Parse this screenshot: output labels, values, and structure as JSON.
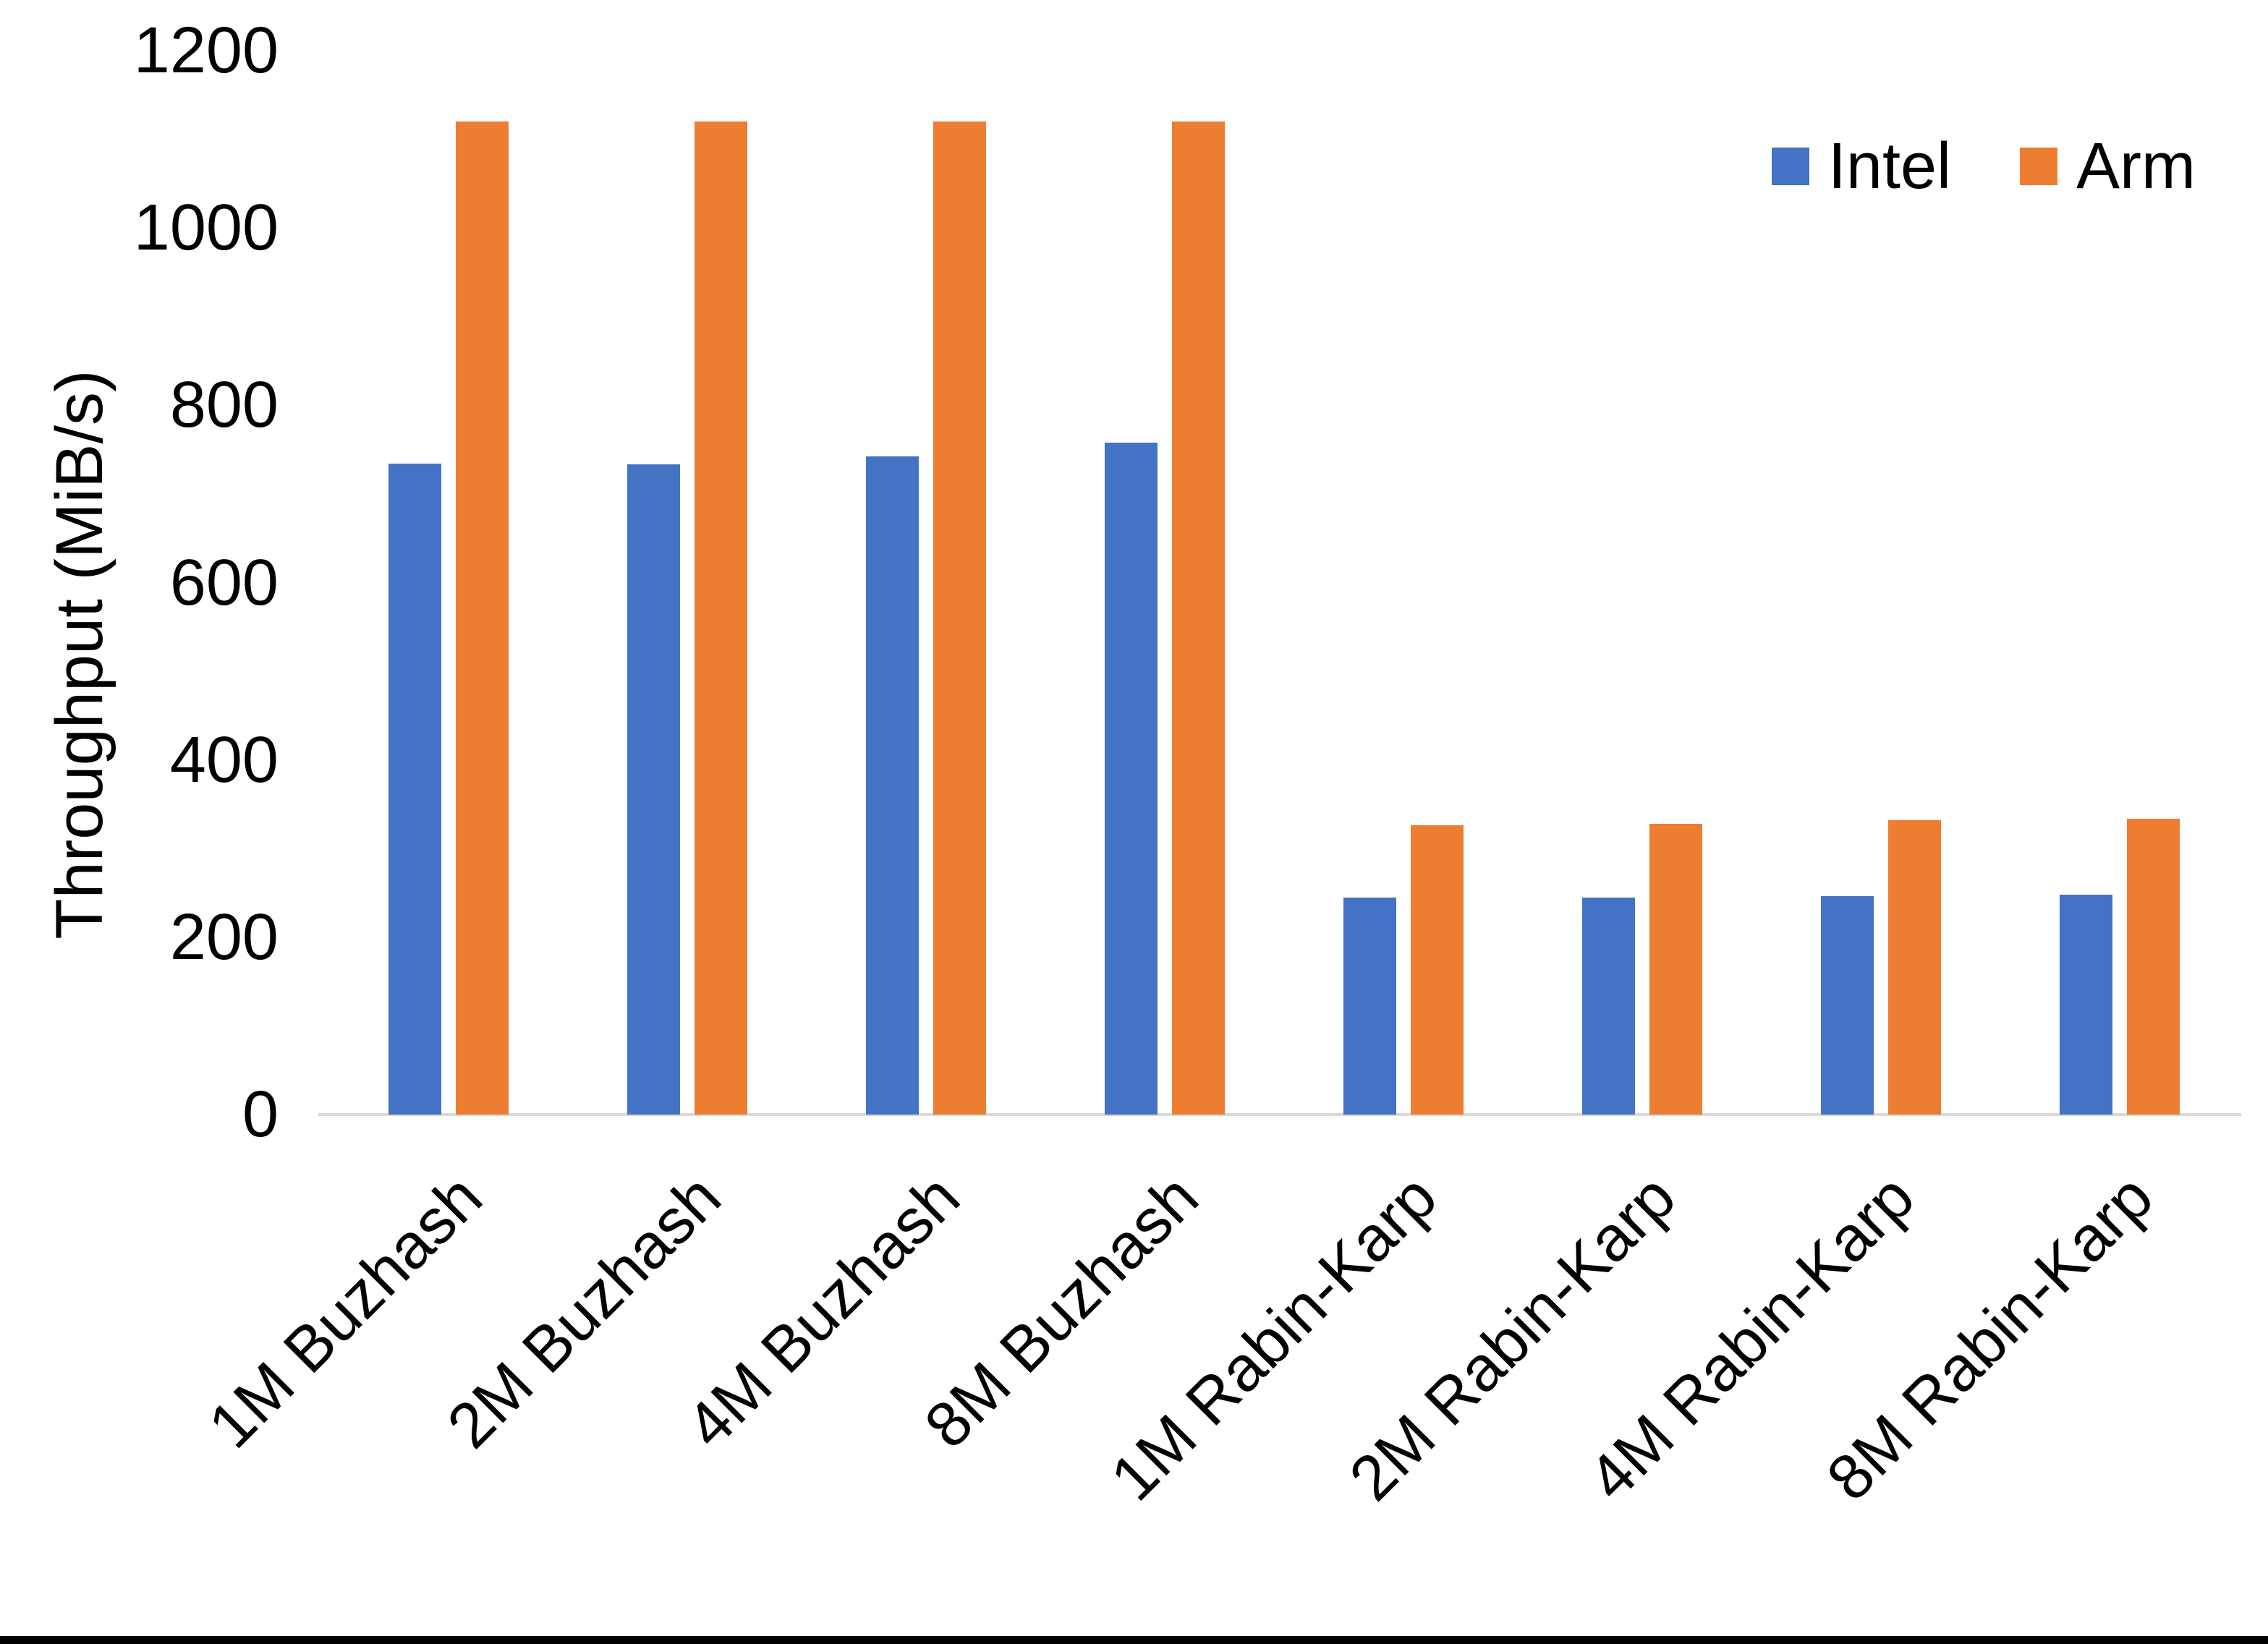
{
  "chart_data": {
    "type": "bar",
    "title": "",
    "categories": [
      "1M Buzhash",
      "2M Buzhash",
      "4M Buzhash",
      "8M Buzhash",
      "1M Rabin-Karp",
      "2M Rabin-Karp",
      "4M Rabin-Karp",
      "8M Rabin-Karp"
    ],
    "series": [
      {
        "name": "Intel",
        "color": "#4472C4",
        "values": [
          734,
          733,
          742,
          758,
          245,
          245,
          246,
          248
        ]
      },
      {
        "name": "Arm",
        "color": "#ED7D31",
        "values": [
          1120,
          1120,
          1120,
          1120,
          326,
          328,
          332,
          334
        ]
      }
    ],
    "xlabel": "",
    "ylabel": "Throughput (MiB/s)",
    "ylim": [
      0,
      1200
    ],
    "yticks": [
      0,
      200,
      400,
      600,
      800,
      1000,
      1200
    ],
    "grid": false,
    "legend_position": "top-right",
    "axis_line_color": "#D9D9D9",
    "text_color": "#000000",
    "background_color": "#FFFFFF",
    "bottom_border_color": "#000000"
  }
}
